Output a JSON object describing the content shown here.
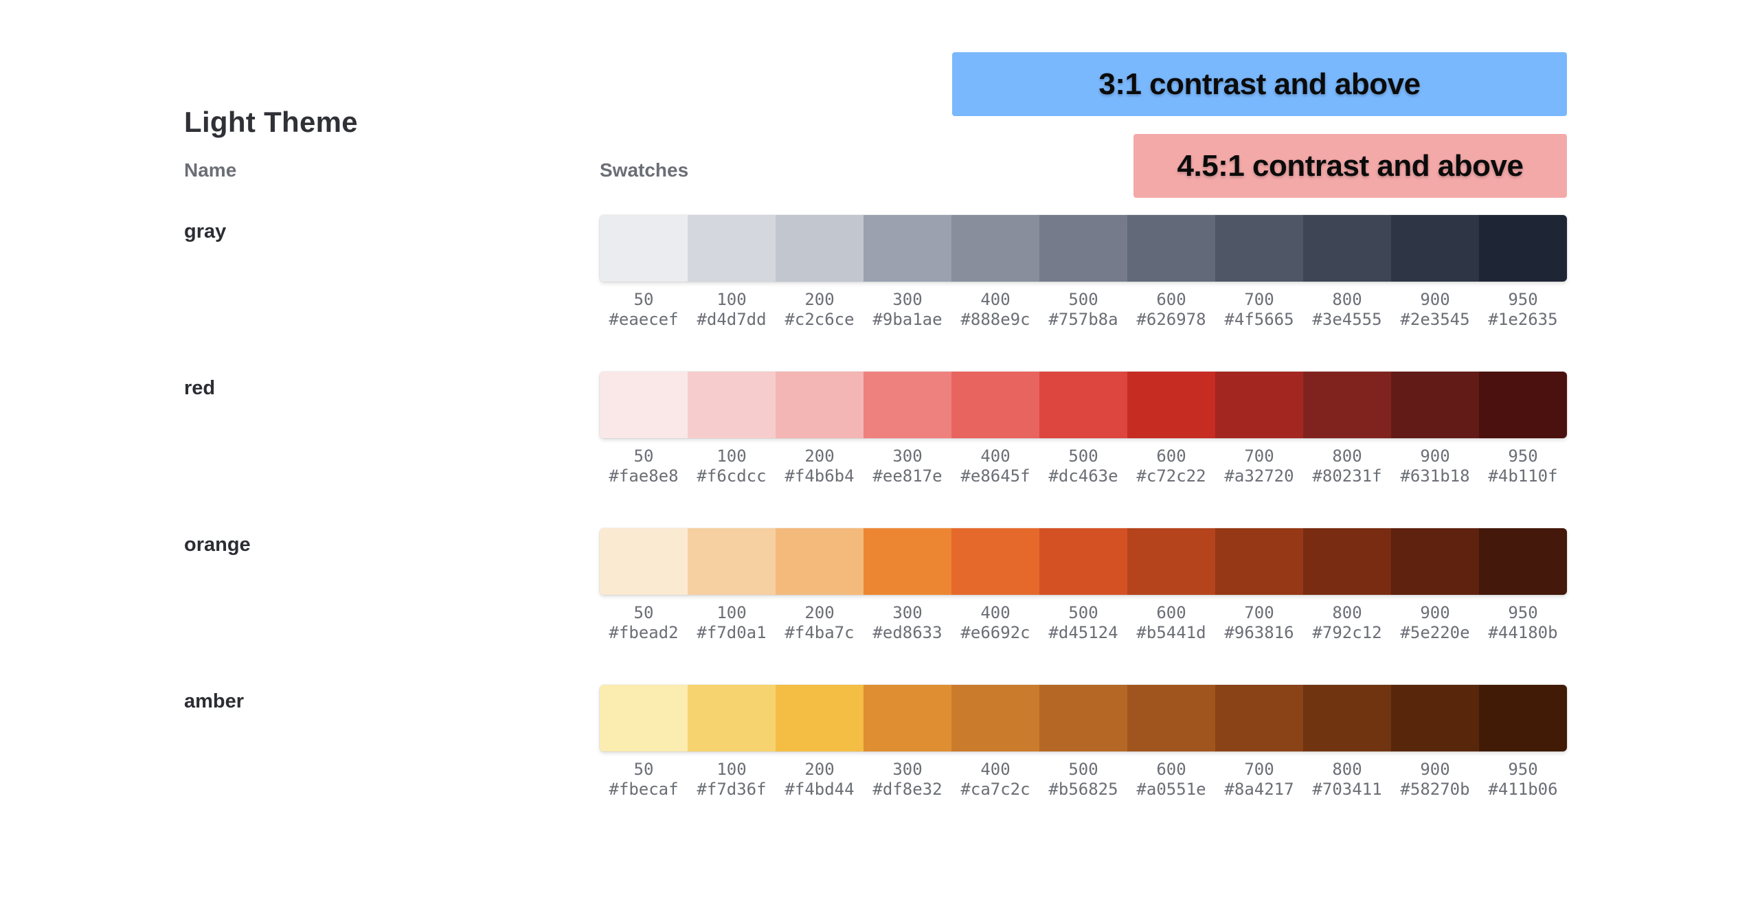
{
  "banners": {
    "contrast_3": {
      "label": "3:1 contrast and above",
      "color": "#7ab8fd"
    },
    "contrast_45": {
      "label": "4.5:1 contrast and above",
      "color": "#f4a9a9"
    }
  },
  "page": {
    "title": "Light Theme",
    "name_header": "Name",
    "swatches_header": "Swatches"
  },
  "palettes": [
    {
      "name": "gray",
      "swatches": [
        {
          "step": "50",
          "hex": "#eaecef"
        },
        {
          "step": "100",
          "hex": "#d4d7dd"
        },
        {
          "step": "200",
          "hex": "#c2c6ce"
        },
        {
          "step": "300",
          "hex": "#9ba1ae"
        },
        {
          "step": "400",
          "hex": "#888e9c"
        },
        {
          "step": "500",
          "hex": "#757b8a"
        },
        {
          "step": "600",
          "hex": "#626978"
        },
        {
          "step": "700",
          "hex": "#4f5665"
        },
        {
          "step": "800",
          "hex": "#3e4555"
        },
        {
          "step": "900",
          "hex": "#2e3545"
        },
        {
          "step": "950",
          "hex": "#1e2635"
        }
      ]
    },
    {
      "name": "red",
      "swatches": [
        {
          "step": "50",
          "hex": "#fae8e8"
        },
        {
          "step": "100",
          "hex": "#f6cdcc"
        },
        {
          "step": "200",
          "hex": "#f4b6b4"
        },
        {
          "step": "300",
          "hex": "#ee817e"
        },
        {
          "step": "400",
          "hex": "#e8645f"
        },
        {
          "step": "500",
          "hex": "#dc463e"
        },
        {
          "step": "600",
          "hex": "#c72c22"
        },
        {
          "step": "700",
          "hex": "#a32720"
        },
        {
          "step": "800",
          "hex": "#80231f"
        },
        {
          "step": "900",
          "hex": "#631b18"
        },
        {
          "step": "950",
          "hex": "#4b110f"
        }
      ]
    },
    {
      "name": "orange",
      "swatches": [
        {
          "step": "50",
          "hex": "#fbead2"
        },
        {
          "step": "100",
          "hex": "#f7d0a1"
        },
        {
          "step": "200",
          "hex": "#f4ba7c"
        },
        {
          "step": "300",
          "hex": "#ed8633"
        },
        {
          "step": "400",
          "hex": "#e6692c"
        },
        {
          "step": "500",
          "hex": "#d45124"
        },
        {
          "step": "600",
          "hex": "#b5441d"
        },
        {
          "step": "700",
          "hex": "#963816"
        },
        {
          "step": "800",
          "hex": "#792c12"
        },
        {
          "step": "900",
          "hex": "#5e220e"
        },
        {
          "step": "950",
          "hex": "#44180b"
        }
      ]
    },
    {
      "name": "amber",
      "swatches": [
        {
          "step": "50",
          "hex": "#fbecaf"
        },
        {
          "step": "100",
          "hex": "#f7d36f"
        },
        {
          "step": "200",
          "hex": "#f4bd44"
        },
        {
          "step": "300",
          "hex": "#df8e32"
        },
        {
          "step": "400",
          "hex": "#ca7c2c"
        },
        {
          "step": "500",
          "hex": "#b56825"
        },
        {
          "step": "600",
          "hex": "#a0551e"
        },
        {
          "step": "700",
          "hex": "#8a4217"
        },
        {
          "step": "800",
          "hex": "#703411"
        },
        {
          "step": "900",
          "hex": "#58270b"
        },
        {
          "step": "950",
          "hex": "#411b06"
        }
      ]
    }
  ]
}
